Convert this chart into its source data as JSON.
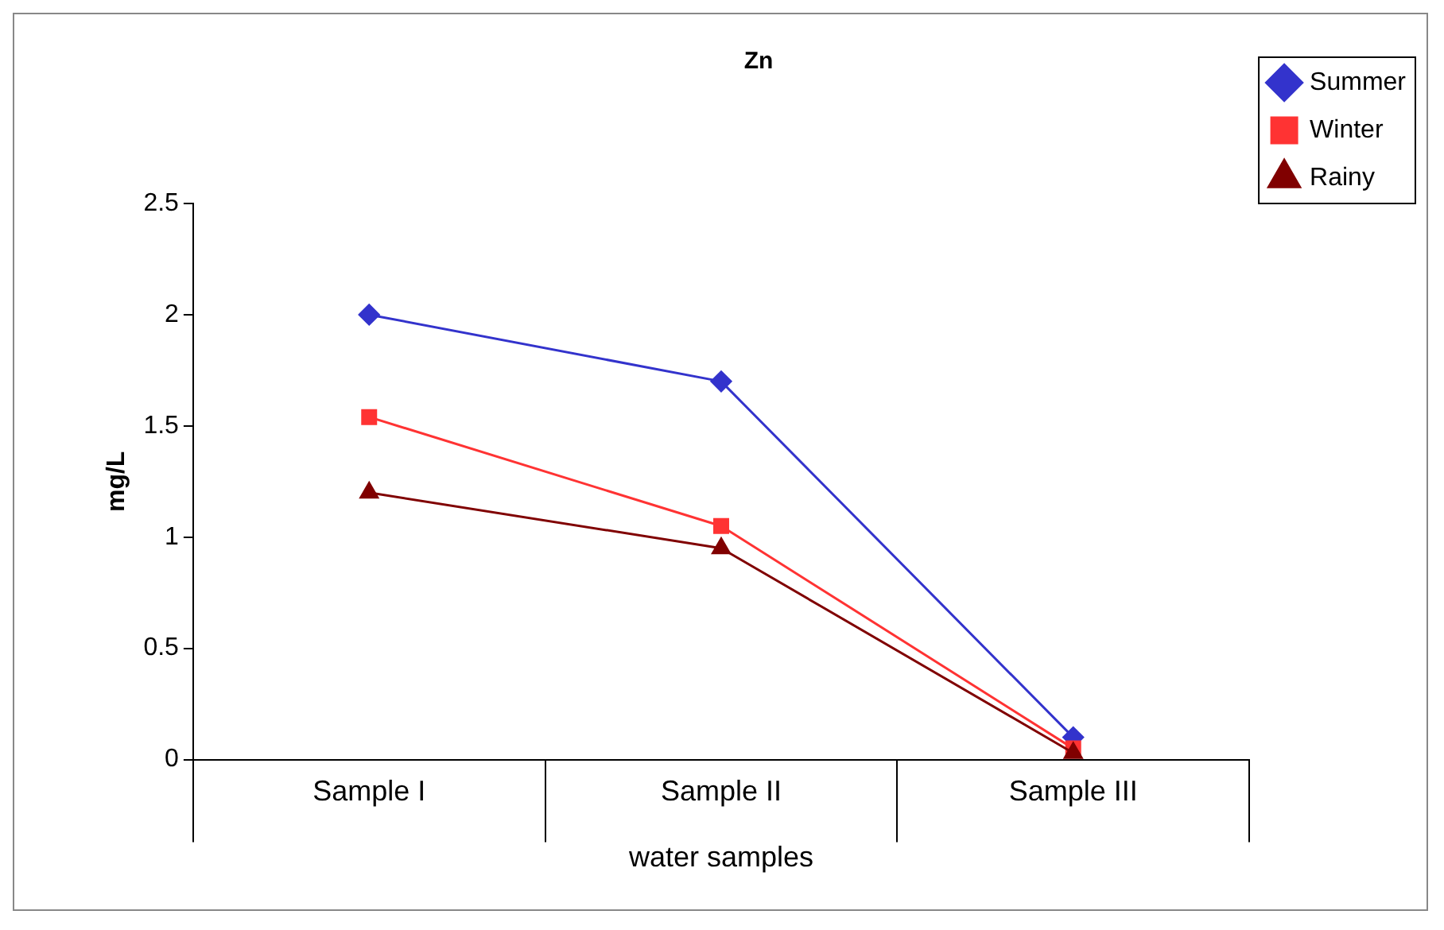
{
  "chart_data": {
    "type": "line",
    "title": "Zn",
    "xlabel": "water samples",
    "ylabel": "mg/L",
    "categories": [
      "Sample I",
      "Sample II",
      "Sample III"
    ],
    "series": [
      {
        "name": "Summer",
        "color": "#3333cc",
        "marker": "diamond",
        "values": [
          2.0,
          1.7,
          0.1
        ]
      },
      {
        "name": "Winter",
        "color": "#ff3333",
        "marker": "square",
        "values": [
          1.54,
          1.05,
          0.05
        ]
      },
      {
        "name": "Rainy",
        "color": "#800000",
        "marker": "triangle",
        "values": [
          1.2,
          0.95,
          0.03
        ]
      }
    ],
    "ylim": [
      0,
      2.5
    ],
    "yticks": [
      0,
      0.5,
      1,
      1.5,
      2,
      2.5
    ],
    "grid": false,
    "legend": "top right"
  }
}
